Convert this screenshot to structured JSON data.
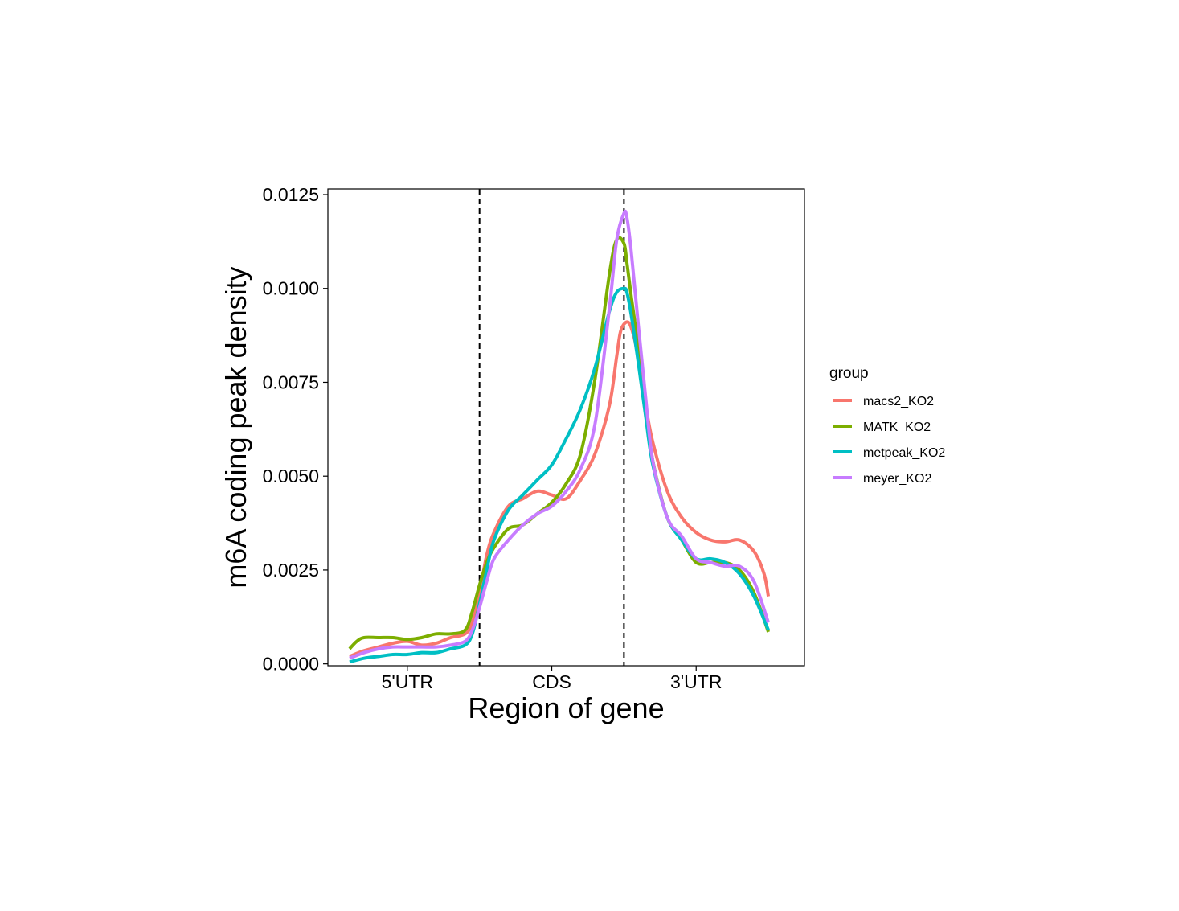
{
  "chart_data": {
    "type": "line",
    "title": "",
    "xlabel": "Region of gene",
    "ylabel": "m6A coding peak density",
    "ylim": [
      -5e-05,
      0.01265
    ],
    "xlim": [
      -0.05,
      3.25
    ],
    "y_ticks": [
      "0.0000",
      "0.0025",
      "0.0050",
      "0.0075",
      "0.0100",
      "0.0125"
    ],
    "y_tick_values": [
      0,
      0.0025,
      0.005,
      0.0075,
      0.01,
      0.0125
    ],
    "x_tick_labels": [
      "5'UTR",
      "CDS",
      "3'UTR"
    ],
    "x_tick_positions": [
      0.5,
      1.5,
      2.5
    ],
    "region_boundaries": [
      1.0,
      2.0
    ],
    "grid": false,
    "legend": {
      "title": "group",
      "position": "right"
    },
    "series": [
      {
        "name": "macs2_KO2",
        "color": "#F8766D",
        "x": [
          0.1,
          0.2,
          0.3,
          0.4,
          0.5,
          0.6,
          0.7,
          0.8,
          0.9,
          0.95,
          1.0,
          1.05,
          1.1,
          1.2,
          1.3,
          1.4,
          1.5,
          1.6,
          1.7,
          1.8,
          1.9,
          1.95,
          1.98,
          2.03,
          2.07,
          2.1,
          2.15,
          2.2,
          2.3,
          2.4,
          2.5,
          2.6,
          2.7,
          2.8,
          2.9,
          2.97,
          3.0
        ],
        "y": [
          0.0002,
          0.00035,
          0.00045,
          0.00055,
          0.0006,
          0.0005,
          0.00055,
          0.0007,
          0.0008,
          0.0011,
          0.0019,
          0.0029,
          0.0035,
          0.0042,
          0.0044,
          0.0046,
          0.0045,
          0.0044,
          0.0049,
          0.0056,
          0.0069,
          0.0082,
          0.0089,
          0.0091,
          0.0087,
          0.0081,
          0.0069,
          0.0059,
          0.0046,
          0.0039,
          0.0035,
          0.0033,
          0.00325,
          0.0033,
          0.003,
          0.0024,
          0.0018
        ]
      },
      {
        "name": "MATK_KO2",
        "color": "#7CAE00",
        "x": [
          0.1,
          0.15,
          0.2,
          0.3,
          0.4,
          0.5,
          0.6,
          0.7,
          0.8,
          0.9,
          0.95,
          1.0,
          1.05,
          1.1,
          1.2,
          1.3,
          1.4,
          1.5,
          1.6,
          1.7,
          1.8,
          1.9,
          1.95,
          2.0,
          2.02,
          2.05,
          2.1,
          2.15,
          2.2,
          2.3,
          2.4,
          2.5,
          2.6,
          2.7,
          2.8,
          2.9,
          3.0
        ],
        "y": [
          0.0004,
          0.0006,
          0.0007,
          0.0007,
          0.0007,
          0.00065,
          0.0007,
          0.0008,
          0.0008,
          0.0009,
          0.0014,
          0.0021,
          0.0027,
          0.0031,
          0.0036,
          0.0037,
          0.004,
          0.0043,
          0.0048,
          0.0056,
          0.0076,
          0.0104,
          0.0113,
          0.0112,
          0.0107,
          0.0098,
          0.0084,
          0.0068,
          0.0054,
          0.0039,
          0.0033,
          0.0027,
          0.0027,
          0.0027,
          0.0025,
          0.0019,
          0.00085
        ]
      },
      {
        "name": "metpeak_KO2",
        "color": "#00BFC4",
        "x": [
          0.1,
          0.2,
          0.3,
          0.4,
          0.5,
          0.6,
          0.7,
          0.8,
          0.9,
          0.95,
          1.0,
          1.05,
          1.1,
          1.2,
          1.3,
          1.4,
          1.5,
          1.6,
          1.7,
          1.8,
          1.9,
          1.95,
          2.0,
          2.02,
          2.05,
          2.1,
          2.15,
          2.2,
          2.3,
          2.4,
          2.5,
          2.6,
          2.7,
          2.8,
          2.9,
          3.0
        ],
        "y": [
          5e-05,
          0.00015,
          0.0002,
          0.00025,
          0.00025,
          0.0003,
          0.0003,
          0.0004,
          0.0005,
          0.0008,
          0.0016,
          0.0025,
          0.0033,
          0.0041,
          0.0045,
          0.0049,
          0.0053,
          0.006,
          0.0068,
          0.0079,
          0.0094,
          0.0099,
          0.01,
          0.0099,
          0.0093,
          0.008,
          0.0066,
          0.0053,
          0.0039,
          0.0033,
          0.0028,
          0.0028,
          0.0027,
          0.0024,
          0.0018,
          0.0009
        ]
      },
      {
        "name": "meyer_KO2",
        "color": "#C77CFF",
        "x": [
          0.1,
          0.2,
          0.3,
          0.4,
          0.5,
          0.6,
          0.7,
          0.8,
          0.9,
          0.95,
          1.0,
          1.05,
          1.1,
          1.2,
          1.3,
          1.4,
          1.5,
          1.6,
          1.7,
          1.8,
          1.9,
          1.95,
          2.0,
          2.02,
          2.05,
          2.1,
          2.15,
          2.2,
          2.3,
          2.4,
          2.5,
          2.6,
          2.7,
          2.8,
          2.9,
          3.0
        ],
        "y": [
          0.00015,
          0.0003,
          0.0004,
          0.00045,
          0.00045,
          0.00045,
          0.00045,
          0.0005,
          0.0006,
          0.0009,
          0.0015,
          0.0022,
          0.0028,
          0.0033,
          0.0037,
          0.004,
          0.0042,
          0.0046,
          0.0052,
          0.0064,
          0.0095,
          0.0113,
          0.012,
          0.0119,
          0.011,
          0.009,
          0.0071,
          0.0054,
          0.0039,
          0.0034,
          0.0028,
          0.0027,
          0.0026,
          0.0026,
          0.0022,
          0.0011
        ]
      }
    ]
  }
}
